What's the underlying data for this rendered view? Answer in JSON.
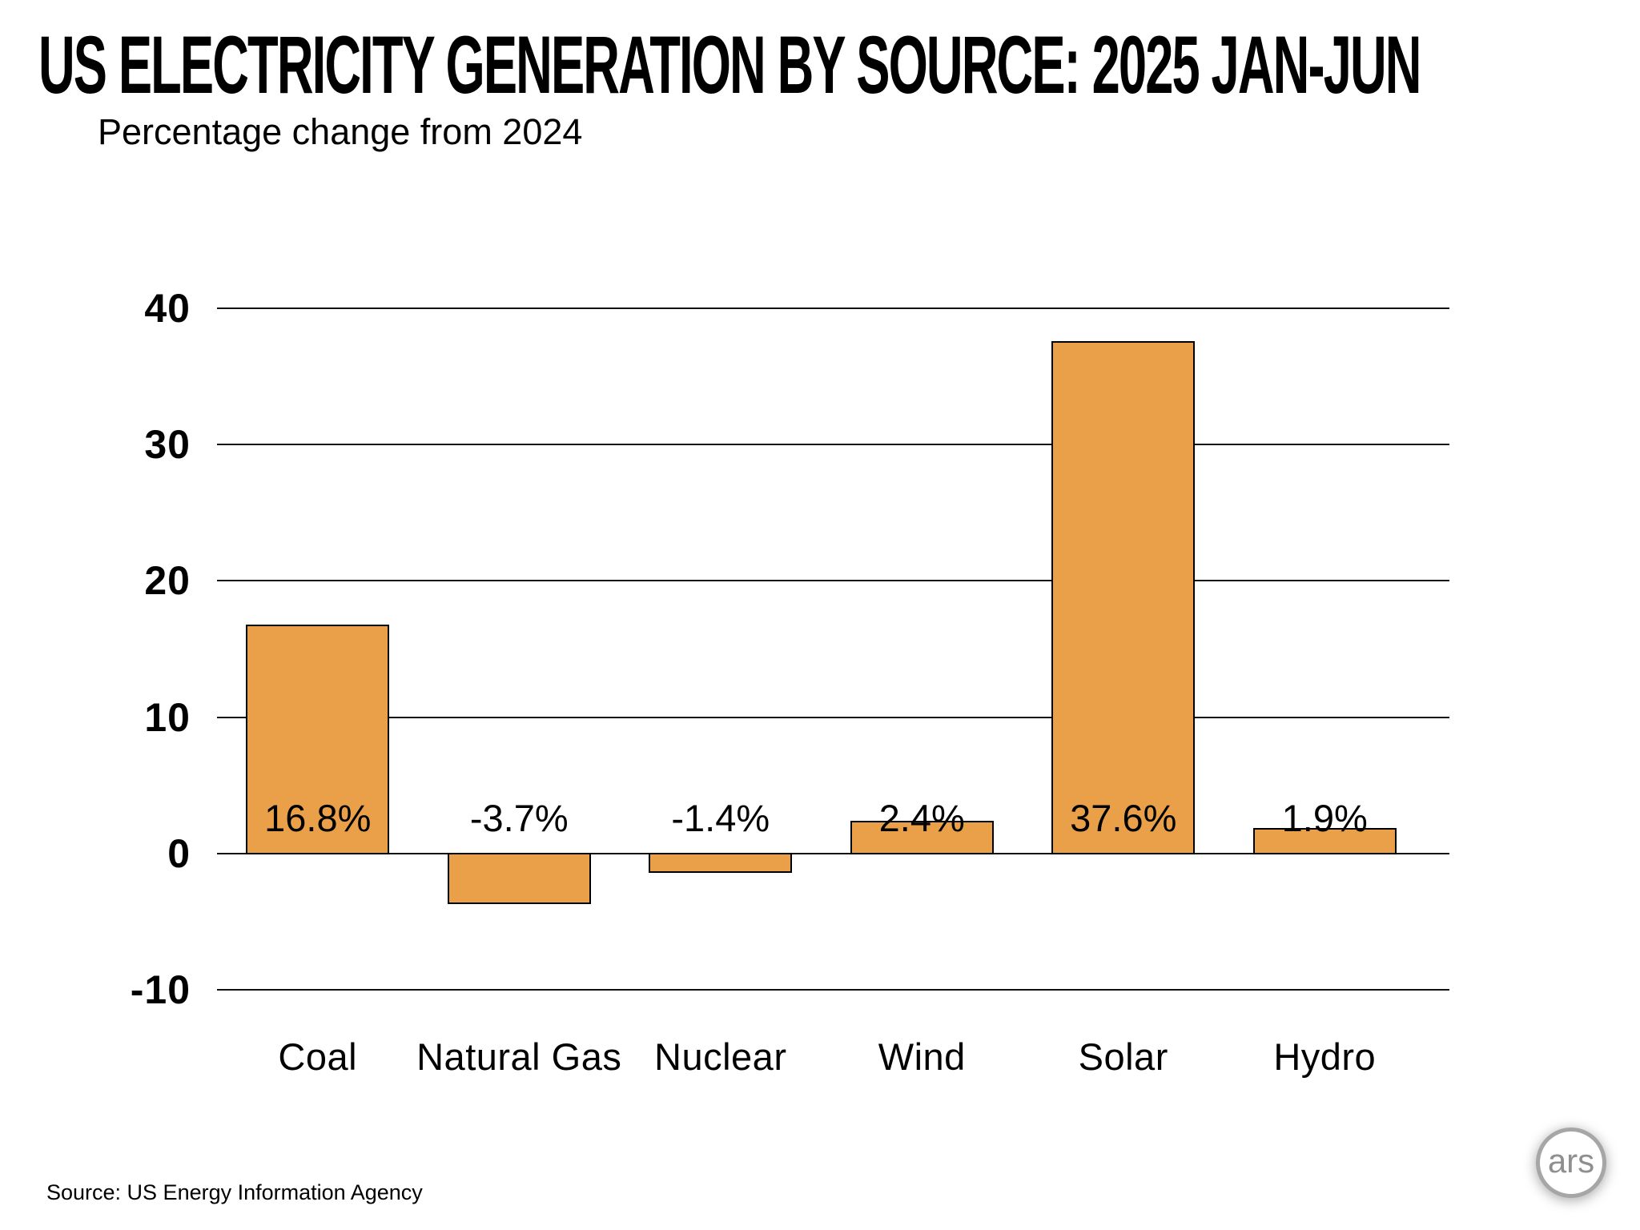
{
  "header": {
    "title": "US ELECTRICITY GENERATION BY SOURCE: 2025 JAN-JUN",
    "subtitle": "Percentage change from 2024"
  },
  "chart_data": {
    "type": "bar",
    "title": "US ELECTRICITY GENERATION BY SOURCE: 2025 JAN-JUN",
    "subtitle": "Percentage change from 2024",
    "categories": [
      "Coal",
      "Natural Gas",
      "Nuclear",
      "Wind",
      "Solar",
      "Hydro"
    ],
    "values": [
      16.8,
      -3.7,
      -1.4,
      2.4,
      37.6,
      1.9
    ],
    "value_labels": [
      "16.8%",
      "-3.7%",
      "-1.4%",
      "2.4%",
      "37.6%",
      "1.9%"
    ],
    "xlabel": "",
    "ylabel": "",
    "ylim": [
      -10,
      40
    ],
    "yticks": [
      40,
      30,
      20,
      10,
      0,
      -10
    ],
    "grid": true,
    "legend": "none",
    "bar_color": "#E9A049",
    "bar_border_color": "#000000",
    "gridline_color": "#111111"
  },
  "footer": {
    "source": "Source:  US Energy Information Agency",
    "logo_text": "ars"
  }
}
